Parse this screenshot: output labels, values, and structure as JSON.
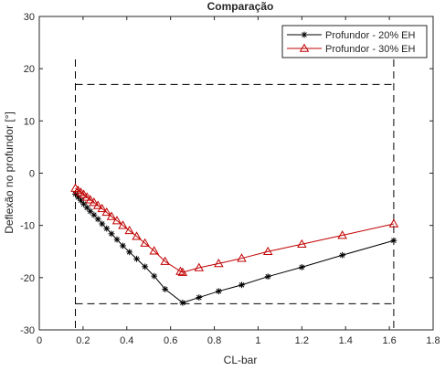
{
  "chart_data": {
    "type": "line",
    "title": "Comparação",
    "xlabel": "CL-bar",
    "ylabel": "Deflexão no profundor [°]",
    "xlim": [
      0,
      1.8
    ],
    "ylim": [
      -30,
      30
    ],
    "grid": false,
    "legend_position": "top-right",
    "x_ticks": [
      {
        "value": 0,
        "label": "0"
      },
      {
        "value": 0.2,
        "label": "0.2"
      },
      {
        "value": 0.4,
        "label": "0.4"
      },
      {
        "value": 0.6,
        "label": "0.6"
      },
      {
        "value": 0.8,
        "label": "0.8"
      },
      {
        "value": 1.0,
        "label": "1"
      },
      {
        "value": 1.2,
        "label": "1.2"
      },
      {
        "value": 1.4,
        "label": "1.4"
      },
      {
        "value": 1.6,
        "label": "1.6"
      },
      {
        "value": 1.8,
        "label": "1.8"
      }
    ],
    "y_ticks": [
      {
        "value": 30,
        "label": "30"
      },
      {
        "value": 20,
        "label": "20"
      },
      {
        "value": 10,
        "label": "10"
      },
      {
        "value": 0,
        "label": "0"
      },
      {
        "value": -10,
        "label": "-10"
      },
      {
        "value": -20,
        "label": "-20"
      },
      {
        "value": -30,
        "label": "-30"
      }
    ],
    "series": [
      {
        "name": "Profundor - 20% EH",
        "color": "#000000",
        "marker": "asterisk",
        "x": [
          0.165,
          0.177,
          0.19,
          0.203,
          0.218,
          0.233,
          0.25,
          0.268,
          0.287,
          0.308,
          0.33,
          0.355,
          0.382,
          0.412,
          0.445,
          0.483,
          0.525,
          0.575,
          0.655,
          0.73,
          0.82,
          0.925,
          1.045,
          1.2,
          1.385,
          1.62
        ],
        "y": [
          -4.0,
          -4.6,
          -5.2,
          -5.9,
          -6.6,
          -7.3,
          -8.0,
          -8.8,
          -9.7,
          -10.6,
          -11.6,
          -12.7,
          -13.9,
          -15.1,
          -16.4,
          -17.9,
          -19.7,
          -22.2,
          -24.8,
          -23.8,
          -22.6,
          -21.4,
          -19.8,
          -18.0,
          -15.7,
          -12.9
        ]
      },
      {
        "name": "Profundor - 30% EH",
        "color": "#c00000",
        "marker": "triangle",
        "x": [
          0.165,
          0.177,
          0.19,
          0.203,
          0.218,
          0.233,
          0.25,
          0.268,
          0.287,
          0.308,
          0.33,
          0.355,
          0.382,
          0.412,
          0.445,
          0.483,
          0.525,
          0.575,
          0.645,
          0.655,
          0.73,
          0.82,
          0.925,
          1.045,
          1.2,
          1.385,
          1.62
        ],
        "y": [
          -2.9,
          -3.3,
          -3.7,
          -4.1,
          -4.6,
          -5.1,
          -5.6,
          -6.2,
          -6.8,
          -7.5,
          -8.3,
          -9.1,
          -10.0,
          -11.0,
          -12.1,
          -13.4,
          -14.9,
          -16.9,
          -18.8,
          -19.0,
          -18.1,
          -17.3,
          -16.3,
          -15.0,
          -13.6,
          -11.9,
          -9.7
        ]
      }
    ],
    "reference_lines": {
      "style": "dashed",
      "color": "#000000",
      "vertical_x": [
        0.165,
        1.62
      ],
      "horizontal_y": [
        17,
        -25
      ]
    }
  }
}
